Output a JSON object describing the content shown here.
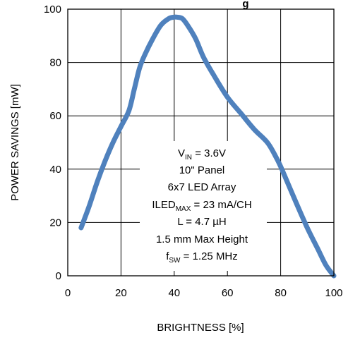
{
  "chart_data": {
    "type": "line",
    "title": "g",
    "xlabel": "BRIGHTNESS [%]",
    "ylabel": "POWER SAVINGS [mW]",
    "xlim": [
      0,
      100
    ],
    "ylim": [
      0,
      100
    ],
    "x_ticks": [
      "0",
      "20",
      "40",
      "60",
      "80",
      "100"
    ],
    "y_ticks": [
      "0",
      "20",
      "40",
      "60",
      "80",
      "100"
    ],
    "grid": true,
    "series_color": "#4f81bd",
    "series": [
      {
        "x": [
          5,
          8,
          11,
          14,
          17,
          20,
          23,
          25,
          27,
          29,
          32,
          35,
          38,
          40,
          41,
          43,
          45,
          48,
          51,
          55,
          60,
          65,
          70,
          75,
          78,
          80,
          83,
          86,
          90,
          94,
          97,
          100
        ],
        "y": [
          18,
          26,
          35,
          43,
          50,
          56,
          62,
          70,
          78,
          83,
          89,
          94,
          96.5,
          97,
          97,
          96.5,
          94,
          89,
          82,
          75,
          67,
          61,
          55,
          50,
          45,
          41,
          34,
          27,
          18,
          10,
          4,
          0
        ]
      }
    ],
    "annotation": {
      "vin_main": "V",
      "vin_sub": "IN",
      "vin_rest": " = 3.6V",
      "panel": "10\" Panel",
      "array": "6x7 LED Array",
      "iled_main": "ILED",
      "iled_sub": "MAX",
      "iled_rest": " = 23 mA/CH",
      "inductance": "L = 4.7 µH",
      "height": "1.5 mm Max Height",
      "fsw_main": "f",
      "fsw_sub": "SW",
      "fsw_rest": " = 1.25 MHz"
    }
  }
}
